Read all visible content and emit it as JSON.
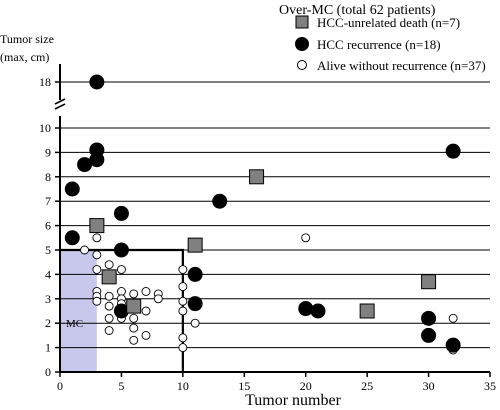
{
  "chart_data": {
    "type": "scatter",
    "title": "",
    "xlabel": "Tumor number",
    "ylabel": "Tumor size\n(max, cm)",
    "ylabel_lines": [
      "Tumor size",
      "(max, cm)"
    ],
    "xlim": [
      0,
      35
    ],
    "ylim": [
      0,
      10
    ],
    "y_break": {
      "from": 10,
      "to": 18,
      "upper_tick": 18
    },
    "xticks": [
      0,
      5,
      10,
      15,
      20,
      25,
      30,
      35
    ],
    "yticks": [
      0,
      1,
      2,
      3,
      4,
      5,
      6,
      7,
      8,
      9,
      10,
      18
    ],
    "grid": "horizontal",
    "legend": {
      "title": "Over-MC (total 62 patients)",
      "position": "top-right",
      "entries": [
        {
          "marker": "square",
          "label": "HCC-unrelated death (n=7)"
        },
        {
          "marker": "filled-circle",
          "label": "HCC recurrence (n=18)"
        },
        {
          "marker": "open-circle",
          "label": "Alive without recurrence (n=37)"
        }
      ]
    },
    "regions": [
      {
        "label": "MC",
        "x": [
          0,
          3
        ],
        "y": [
          0,
          5
        ],
        "fill": "#c8c8ec"
      },
      {
        "label": "",
        "x": [
          0,
          10
        ],
        "y": [
          0,
          5
        ],
        "outline": true
      }
    ],
    "series": [
      {
        "name": "HCC-unrelated death (n=7)",
        "marker": "square",
        "color": "#808080",
        "points": [
          [
            3,
            6
          ],
          [
            4,
            3.9
          ],
          [
            6,
            2.7
          ],
          [
            11,
            5.2
          ],
          [
            16,
            8
          ],
          [
            25,
            2.5
          ],
          [
            30,
            3.7
          ]
        ]
      },
      {
        "name": "HCC recurrence (n=18)",
        "marker": "filled-circle",
        "color": "#000000",
        "points": [
          [
            3,
            18
          ],
          [
            3,
            9.1
          ],
          [
            3,
            8.7
          ],
          [
            2,
            8.5
          ],
          [
            1,
            7.5
          ],
          [
            5,
            6.5
          ],
          [
            1,
            5.5
          ],
          [
            5,
            5
          ],
          [
            5,
            2.5
          ],
          [
            11,
            2.8
          ],
          [
            11,
            4
          ],
          [
            13,
            7
          ],
          [
            20,
            2.6
          ],
          [
            21,
            2.5
          ],
          [
            30,
            2.2
          ],
          [
            30,
            1.5
          ],
          [
            32,
            1.1
          ],
          [
            32,
            9.05
          ]
        ]
      },
      {
        "name": "Alive without recurrence (n=37)",
        "marker": "open-circle",
        "color": "#ffffff",
        "points": [
          [
            2,
            5
          ],
          [
            3,
            5.5
          ],
          [
            3,
            4.8
          ],
          [
            3,
            4.2
          ],
          [
            3,
            3.3
          ],
          [
            3,
            3.1
          ],
          [
            3,
            2.9
          ],
          [
            4,
            4.4
          ],
          [
            4,
            3.1
          ],
          [
            4,
            2.7
          ],
          [
            4,
            2.2
          ],
          [
            4,
            1.7
          ],
          [
            5,
            4.2
          ],
          [
            5,
            3.3
          ],
          [
            5,
            3
          ],
          [
            5,
            2.8
          ],
          [
            5,
            2.2
          ],
          [
            6,
            3.2
          ],
          [
            6,
            2.2
          ],
          [
            6,
            1.8
          ],
          [
            6,
            1.3
          ],
          [
            7,
            3.3
          ],
          [
            7,
            2.5
          ],
          [
            7,
            1.5
          ],
          [
            8,
            3.2
          ],
          [
            8,
            3
          ],
          [
            10,
            4.2
          ],
          [
            10,
            3.5
          ],
          [
            10,
            2.9
          ],
          [
            10,
            2.5
          ],
          [
            10,
            1.4
          ],
          [
            10,
            1
          ],
          [
            11,
            2.9
          ],
          [
            11,
            2
          ],
          [
            20,
            5.5
          ],
          [
            32,
            2.2
          ],
          [
            32,
            0.9
          ]
        ]
      }
    ]
  }
}
